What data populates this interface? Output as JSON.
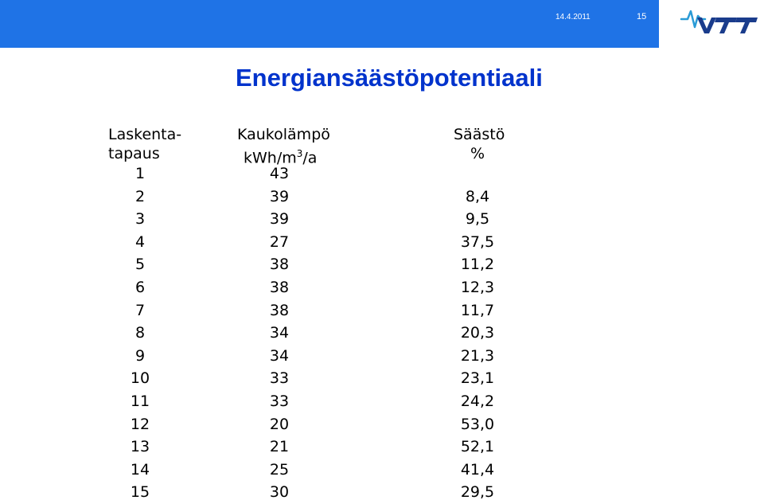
{
  "header": {
    "date": "14.4.2011",
    "slide_number": "15",
    "logo_text": "VTT",
    "accent_color": "#1f73e6"
  },
  "title": "Energiansäästöpotentiaali",
  "table": {
    "headers": {
      "col1_line1": "Laskenta-",
      "col1_line2": "tapaus",
      "col2_line1": "Kaukolämpö",
      "col2_line2_pre": "kWh/m",
      "col2_line2_sup": "3",
      "col2_line2_post": "/a",
      "col3_line1": "Säästö",
      "col3_line2": "%"
    },
    "rows": [
      {
        "case": "1",
        "heat": "43",
        "saving": ""
      },
      {
        "case": "2",
        "heat": "39",
        "saving": "8,4"
      },
      {
        "case": "3",
        "heat": "39",
        "saving": "9,5"
      },
      {
        "case": "4",
        "heat": "27",
        "saving": "37,5"
      },
      {
        "case": "5",
        "heat": "38",
        "saving": "11,2"
      },
      {
        "case": "6",
        "heat": "38",
        "saving": "12,3"
      },
      {
        "case": "7",
        "heat": "38",
        "saving": "11,7"
      },
      {
        "case": "8",
        "heat": "34",
        "saving": "20,3"
      },
      {
        "case": "9",
        "heat": "34",
        "saving": "21,3"
      },
      {
        "case": "10",
        "heat": "33",
        "saving": "23,1"
      },
      {
        "case": "11",
        "heat": "33",
        "saving": "24,2"
      },
      {
        "case": "12",
        "heat": "20",
        "saving": "53,0"
      },
      {
        "case": "13",
        "heat": "21",
        "saving": "52,1"
      },
      {
        "case": "14",
        "heat": "25",
        "saving": "41,4"
      },
      {
        "case": "15",
        "heat": "30",
        "saving": "29,5"
      }
    ]
  }
}
